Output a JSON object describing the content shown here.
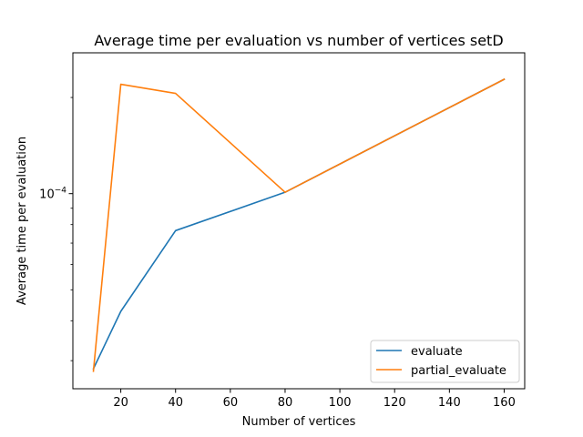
{
  "chart_data": {
    "type": "line",
    "title": "Average time per evaluation vs number of vertices setD",
    "xlabel": "Number of vertices",
    "ylabel": "Average time per evaluation",
    "x": [
      10,
      20,
      40,
      80,
      160
    ],
    "series": [
      {
        "name": "evaluate",
        "color": "#1f77b4",
        "values": [
          2.83e-05,
          4.28e-05,
          7.66e-05,
          0.000101,
          0.000228
        ]
      },
      {
        "name": "partial_evaluate",
        "color": "#ff7f0e",
        "values": [
          2.78e-05,
          0.00022,
          0.000206,
          0.000101,
          0.000228
        ]
      }
    ],
    "xlim": [
      2.5,
      167.5
    ],
    "xticks": [
      20,
      40,
      60,
      80,
      100,
      120,
      140,
      160
    ],
    "yscale": "log",
    "ylim": [
      2.45e-05,
      0.000276
    ],
    "yticks": [
      {
        "value": 0.0001,
        "label": "10−4"
      }
    ],
    "grid": false,
    "legend_position": "lower-right"
  }
}
